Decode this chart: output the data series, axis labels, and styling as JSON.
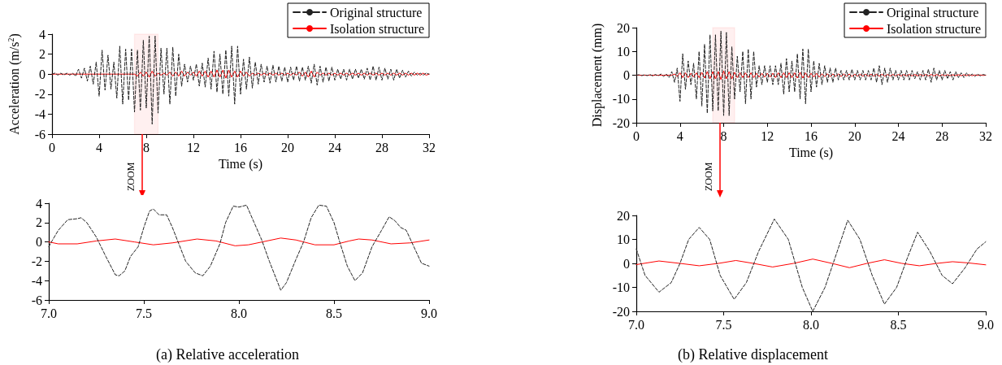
{
  "chart_data": [
    {
      "type": "line",
      "xlabel": "Time (s)",
      "ylabel": "Acceleration (m/s$^{2}$)",
      "xlim": [
        0,
        32
      ],
      "xticks": [
        0,
        4,
        8,
        12,
        16,
        20,
        24,
        28,
        32
      ],
      "ylim": [
        -6,
        4
      ],
      "yticks": [
        -6,
        -4,
        -2,
        0,
        2,
        4
      ],
      "grid": false,
      "legend": "top right",
      "marker": "none",
      "annotations": [
        "ZOOM"
      ],
      "bands": [
        {
          "axis": "x",
          "from": 7,
          "to": 9,
          "color": "#ff0000"
        }
      ],
      "x": [
        0,
        0.25,
        0.5,
        0.75,
        1,
        1.25,
        1.5,
        1.75,
        2,
        2.25,
        2.5,
        2.75,
        3,
        3.25,
        3.5,
        3.75,
        4,
        4.25,
        4.5,
        4.75,
        5,
        5.25,
        5.5,
        5.75,
        6,
        6.25,
        6.5,
        6.75,
        7,
        7.25,
        7.5,
        7.75,
        8,
        8.25,
        8.5,
        8.75,
        9,
        9.25,
        9.5,
        9.75,
        10,
        10.25,
        10.5,
        10.75,
        11,
        11.25,
        11.5,
        11.75,
        12,
        12.25,
        12.5,
        12.75,
        13,
        13.25,
        13.5,
        13.75,
        14,
        14.25,
        14.5,
        14.75,
        15,
        15.25,
        15.5,
        15.75,
        16,
        16.25,
        16.5,
        16.75,
        17,
        17.25,
        17.5,
        17.75,
        18,
        18.25,
        18.5,
        18.75,
        19,
        19.25,
        19.5,
        19.75,
        20,
        20.25,
        20.5,
        20.75,
        21,
        21.25,
        21.5,
        21.75,
        22,
        22.25,
        22.5,
        22.75,
        23,
        23.25,
        23.5,
        23.75,
        24,
        24.25,
        24.5,
        24.75,
        25,
        25.25,
        25.5,
        25.75,
        26,
        26.25,
        26.5,
        26.75,
        27,
        27.25,
        27.5,
        27.75,
        28,
        28.25,
        28.5,
        28.75,
        29,
        29.25,
        29.5,
        29.75,
        30,
        30.25,
        30.5,
        30.75,
        31,
        31.25,
        31.5,
        31.75,
        32
      ],
      "series": [
        {
          "name": "Original structure",
          "color": "#222222",
          "line_style": "dashed",
          "values": [
            0,
            0.1,
            -0.1,
            0.1,
            -0.1,
            0.1,
            -0.1,
            0.1,
            -0.2,
            0.5,
            -0.4,
            0.6,
            -0.7,
            0.8,
            -1,
            1.2,
            -2.2,
            2.4,
            -1.6,
            1.9,
            -1.5,
            1.2,
            -2.4,
            2.8,
            -3,
            2.5,
            -2.6,
            2.5,
            -3.8,
            2.4,
            -3.6,
            3.4,
            -3.4,
            3.8,
            -5,
            3.8,
            -3.9,
            2.6,
            -2,
            2.6,
            -3,
            2.7,
            -2.2,
            2,
            -1.2,
            1,
            -0.8,
            0.8,
            -0.6,
            1,
            -1.2,
            1.1,
            -1.3,
            1.6,
            -1.5,
            2.3,
            -1.8,
            2,
            -2,
            2.4,
            -2.2,
            2.8,
            -3,
            2.8,
            -2,
            1.5,
            -1.5,
            1.7,
            -1.4,
            1.2,
            -1,
            1,
            -0.8,
            0.8,
            -0.9,
            0.9,
            -0.8,
            0.8,
            -0.7,
            0.7,
            -0.8,
            0.7,
            -0.6,
            0.8,
            -0.7,
            0.7,
            -0.6,
            0.8,
            -0.9,
            1,
            -1.1,
            0.8,
            -0.8,
            0.7,
            -0.7,
            0.7,
            -0.6,
            0.5,
            -0.5,
            0.5,
            -0.6,
            0.5,
            -0.5,
            0.5,
            -0.4,
            0.5,
            -0.5,
            0.6,
            -0.6,
            0.8,
            -0.6,
            0.7,
            -0.6,
            0.6,
            -0.5,
            0.5,
            -0.6,
            0.5,
            -0.4,
            0.4,
            -0.3,
            0.3,
            -0.2,
            0.2,
            -0.1,
            0.1,
            -0.1,
            0.1,
            0
          ]
        },
        {
          "name": "Isolation structure",
          "color": "#ff0000",
          "line_style": "solid",
          "values": [
            0,
            0,
            0,
            0,
            0,
            0,
            0,
            0,
            0,
            0,
            0,
            0,
            0,
            0,
            0,
            0,
            0,
            0,
            0,
            0,
            0,
            0,
            0,
            0,
            0,
            0,
            0,
            0,
            0,
            -0.2,
            0.2,
            -0.2,
            0.2,
            -0.3,
            0.3,
            -0.2,
            0.1,
            -0.1,
            0.1,
            -0.1,
            0.2,
            -0.2,
            0.2,
            -0.2,
            0.3,
            -0.2,
            0.2,
            -0.1,
            0.2,
            -0.2,
            0.3,
            -0.2,
            0.3,
            -0.3,
            0.3,
            -0.3,
            0.4,
            -0.3,
            0.4,
            -0.4,
            0.4,
            -0.3,
            0.3,
            -0.3,
            0.3,
            -0.2,
            0.2,
            -0.2,
            0.1,
            -0.1,
            0.1,
            -0.1,
            0.1,
            -0.1,
            0.1,
            -0.1,
            0.1,
            -0.1,
            0.1,
            -0.1,
            0.1,
            -0.1,
            0.1,
            -0.1,
            0.2,
            -0.2,
            0.2,
            -0.3,
            0.3,
            -0.3,
            0.2,
            -0.1,
            0.1,
            -0.1,
            0.1,
            -0.1,
            0.1,
            -0.1,
            0.1,
            -0.1,
            0.1,
            -0.1,
            0.1,
            -0.1,
            0.1,
            -0.1,
            0.1,
            -0.1,
            0.1,
            -0.1,
            0.1,
            -0.1,
            0.1,
            -0.1,
            0.1,
            -0.1,
            0.1,
            -0.1,
            0.1,
            -0.1,
            0.1,
            -0.1,
            0.1,
            -0.1,
            0.1,
            -0.1,
            0.1,
            -0.1,
            0
          ]
        }
      ]
    },
    {
      "type": "line",
      "title": "(a) Relative acceleration",
      "xlim": [
        7,
        9
      ],
      "xticks": [
        {
          "value": 7,
          "label": "7.0"
        },
        {
          "value": 7.5,
          "label": "7.5"
        },
        {
          "value": 8,
          "label": "8.0"
        },
        {
          "value": 8.5,
          "label": "8.5"
        },
        {
          "value": 9,
          "label": "9.0"
        }
      ],
      "ylim": [
        -6,
        4
      ],
      "yticks": [
        -6,
        -4,
        -2,
        0,
        2,
        4
      ],
      "grid": false,
      "marker": "none",
      "series": [
        {
          "color": "#222222",
          "line_style": "dashed",
          "x": [
            7,
            7.02,
            7.05,
            7.1,
            7.15,
            7.17,
            7.2,
            7.25,
            7.3,
            7.35,
            7.37,
            7.4,
            7.43,
            7.47,
            7.5,
            7.53,
            7.55,
            7.58,
            7.62,
            7.65,
            7.68,
            7.72,
            7.77,
            7.81,
            7.85,
            7.9,
            7.93,
            7.97,
            8,
            8.04,
            8.08,
            8.12,
            8.16,
            8.22,
            8.25,
            8.3,
            8.34,
            8.38,
            8.42,
            8.46,
            8.5,
            8.53,
            8.57,
            8.61,
            8.65,
            8.7,
            8.75,
            8.79,
            8.82,
            8.85,
            8.88,
            8.92,
            8.96,
            9
          ],
          "values": [
            -0.5,
            0.2,
            1.2,
            2.3,
            2.4,
            2.5,
            2,
            0.5,
            -1.5,
            -3.4,
            -3.5,
            -3,
            -1.5,
            -0.5,
            1.5,
            3.2,
            3.4,
            2.8,
            2.8,
            1.5,
            0,
            -2,
            -3.2,
            -3.5,
            -2.5,
            -0.2,
            2,
            3.7,
            3.6,
            3.8,
            2,
            0.2,
            -2,
            -5,
            -4.2,
            -1.8,
            0,
            2.5,
            3.8,
            3.7,
            2,
            0,
            -2.5,
            -4,
            -3.2,
            -0.5,
            1.2,
            2.6,
            2.2,
            1.5,
            1.2,
            -0.5,
            -2.2,
            -2.5
          ]
        },
        {
          "color": "#ff0000",
          "line_style": "solid",
          "x": [
            7,
            7.05,
            7.15,
            7.25,
            7.35,
            7.45,
            7.55,
            7.65,
            7.78,
            7.88,
            7.98,
            8.05,
            8.22,
            8.3,
            8.4,
            8.5,
            8.58,
            8.63,
            8.7,
            8.8,
            8.9,
            9
          ],
          "values": [
            0,
            -0.2,
            -0.2,
            0.1,
            0.3,
            0,
            -0.3,
            -0.1,
            0.3,
            0.1,
            -0.4,
            -0.3,
            0.4,
            0.2,
            -0.3,
            -0.3,
            0.1,
            0.3,
            0.2,
            -0.2,
            -0.1,
            0.2
          ]
        }
      ]
    },
    {
      "type": "line",
      "xlabel": "Time (s)",
      "ylabel": "Displacement (mm)",
      "xlim": [
        0,
        32
      ],
      "xticks": [
        0,
        4,
        8,
        12,
        16,
        20,
        24,
        28,
        32
      ],
      "ylim": [
        -20,
        20
      ],
      "yticks": [
        -20,
        -10,
        0,
        10,
        20
      ],
      "grid": false,
      "legend": "top right",
      "marker": "none",
      "annotations": [
        "ZOOM"
      ],
      "bands": [
        {
          "axis": "x",
          "from": 7,
          "to": 9,
          "color": "#ff0000"
        }
      ],
      "x": [
        0,
        0.25,
        0.5,
        0.75,
        1,
        1.25,
        1.5,
        1.75,
        2,
        2.25,
        2.5,
        2.75,
        3,
        3.25,
        3.5,
        3.75,
        4,
        4.25,
        4.5,
        4.75,
        5,
        5.25,
        5.5,
        5.75,
        6,
        6.25,
        6.5,
        6.75,
        7,
        7.25,
        7.5,
        7.75,
        8,
        8.25,
        8.5,
        8.75,
        9,
        9.25,
        9.5,
        9.75,
        10,
        10.25,
        10.5,
        10.75,
        11,
        11.25,
        11.5,
        11.75,
        12,
        12.25,
        12.5,
        12.75,
        13,
        13.25,
        13.5,
        13.75,
        14,
        14.25,
        14.5,
        14.75,
        15,
        15.25,
        15.5,
        15.75,
        16,
        16.25,
        16.5,
        16.75,
        17,
        17.25,
        17.5,
        17.75,
        18,
        18.25,
        18.5,
        18.75,
        19,
        19.25,
        19.5,
        19.75,
        20,
        20.25,
        20.5,
        20.75,
        21,
        21.25,
        21.5,
        21.75,
        22,
        22.25,
        22.5,
        22.75,
        23,
        23.25,
        23.5,
        23.75,
        24,
        24.25,
        24.5,
        24.75,
        25,
        25.25,
        25.5,
        25.75,
        26,
        26.25,
        26.5,
        26.75,
        27,
        27.25,
        27.5,
        27.75,
        28,
        28.25,
        28.5,
        28.75,
        29,
        29.25,
        29.5,
        29.75,
        30,
        30.25,
        30.5,
        30.75,
        31,
        31.25,
        31.5,
        31.75,
        32
      ],
      "series": [
        {
          "name": "Original structure",
          "color": "#222222",
          "line_style": "dashed",
          "values": [
            0,
            0.2,
            -0.2,
            0.2,
            -0.2,
            0.3,
            -0.3,
            0.3,
            -0.3,
            0.5,
            -0.5,
            0.5,
            -1,
            1.5,
            -3,
            3,
            -11,
            9,
            -6,
            6,
            -4,
            5,
            -10,
            10,
            -13,
            13,
            -16,
            17,
            -15,
            17,
            -15,
            18.5,
            -17,
            18,
            -17,
            12,
            -10,
            8,
            -7,
            10,
            -12,
            11,
            -10,
            10,
            -5,
            4,
            -4,
            4,
            -3,
            4,
            -4,
            4,
            -4,
            5,
            -8,
            7,
            -7,
            6,
            -7,
            9,
            -10,
            11,
            -12,
            11,
            -7,
            6,
            -5,
            5,
            -4,
            4,
            -3,
            3,
            -3,
            3,
            -2,
            2,
            -2,
            2,
            -2,
            2.5,
            -2,
            2,
            -2,
            2,
            -2,
            2,
            -2,
            3,
            -3,
            4,
            -4,
            3,
            -3,
            3,
            -2,
            2,
            -2,
            2,
            -2,
            2,
            -2,
            2,
            -1.5,
            1.5,
            -2,
            2,
            -2,
            2.5,
            -3,
            3,
            -2,
            2,
            -2,
            2,
            -1.5,
            1.5,
            -2,
            1.5,
            -1,
            1,
            -1,
            1,
            -0.5,
            0.5,
            -0.5,
            0.5,
            -0.3,
            0.3,
            0
          ]
        },
        {
          "name": "Isolation structure",
          "color": "#ff0000",
          "line_style": "solid",
          "values": [
            0,
            0,
            0,
            0,
            0,
            0,
            0,
            0,
            0,
            0,
            0,
            0,
            0,
            0,
            0.5,
            -0.5,
            1,
            -1,
            1,
            -1,
            0.8,
            -0.8,
            1,
            -1,
            1.2,
            -1.2,
            1.5,
            -1.5,
            1.5,
            -1.5,
            1.5,
            -1.8,
            1.8,
            -1.5,
            1.5,
            -1.5,
            1.2,
            -1,
            1,
            -1,
            1,
            -1,
            1,
            -1,
            0.8,
            -0.8,
            0.8,
            -0.8,
            0.8,
            -0.8,
            0.8,
            -1,
            1,
            -1,
            1,
            -1,
            1,
            -1,
            1,
            -1.2,
            1.2,
            -1.2,
            1,
            -1,
            0.8,
            -0.8,
            0.8,
            -0.8,
            0.6,
            -0.6,
            0.6,
            -0.6,
            0.5,
            -0.5,
            0.5,
            -0.5,
            0.5,
            -0.5,
            0.5,
            -0.5,
            0.4,
            -0.4,
            0.4,
            -0.4,
            0.4,
            -0.4,
            0.4,
            -0.4,
            0.4,
            -0.4,
            0.4,
            -0.4,
            0.3,
            -0.3,
            0.3,
            -0.3,
            0.3,
            -0.3,
            0.3,
            -0.3,
            0.3,
            -0.3,
            0.3,
            -0.3,
            0.3,
            -0.3,
            0.3,
            -0.3,
            0.3,
            -0.3,
            0.3,
            -0.3,
            0.2,
            -0.2,
            0.2,
            -0.2,
            0.2,
            -0.2,
            0.2,
            -0.2,
            0.2,
            -0.2,
            0.2,
            -0.2,
            0.1,
            -0.1,
            0.1,
            -0.1,
            0
          ]
        }
      ]
    },
    {
      "type": "line",
      "title": "(b) Relative displacement",
      "xlim": [
        7,
        9
      ],
      "xticks": [
        {
          "value": 7,
          "label": "7.0"
        },
        {
          "value": 7.5,
          "label": "7.5"
        },
        {
          "value": 8,
          "label": "8.0"
        },
        {
          "value": 8.5,
          "label": "8.5"
        },
        {
          "value": 9,
          "label": "9.0"
        }
      ],
      "ylim": [
        -20,
        20
      ],
      "yticks": [
        -20,
        -10,
        0,
        10,
        20
      ],
      "grid": false,
      "marker": "none",
      "series": [
        {
          "color": "#222222",
          "line_style": "dashed",
          "x": [
            7,
            7.05,
            7.13,
            7.2,
            7.25,
            7.3,
            7.36,
            7.42,
            7.48,
            7.56,
            7.63,
            7.7,
            7.79,
            7.87,
            7.95,
            8.01,
            8.08,
            8.15,
            8.21,
            8.28,
            8.35,
            8.42,
            8.49,
            8.55,
            8.61,
            8.68,
            8.75,
            8.81,
            8.88,
            8.95,
            9
          ],
          "values": [
            6,
            -5,
            -12,
            -8,
            0,
            10,
            15,
            10,
            -5,
            -15,
            -8,
            5,
            18.5,
            10,
            -10,
            -20,
            -10,
            5,
            18,
            10,
            -5,
            -17,
            -10,
            2,
            13,
            5,
            -5,
            -8.5,
            -2,
            6,
            9
          ]
        },
        {
          "color": "#ff0000",
          "line_style": "solid",
          "x": [
            7,
            7.13,
            7.25,
            7.36,
            7.47,
            7.57,
            7.67,
            7.78,
            7.9,
            8.01,
            8.12,
            8.22,
            8.32,
            8.42,
            8.52,
            8.62,
            8.72,
            8.81,
            8.9,
            9
          ],
          "values": [
            -0.5,
            1,
            0,
            -1,
            0,
            1.2,
            0,
            -1.5,
            0,
            1.8,
            0,
            -1.8,
            0,
            1.5,
            0,
            -1,
            0,
            0.7,
            0.2,
            -0.6
          ]
        }
      ]
    }
  ]
}
